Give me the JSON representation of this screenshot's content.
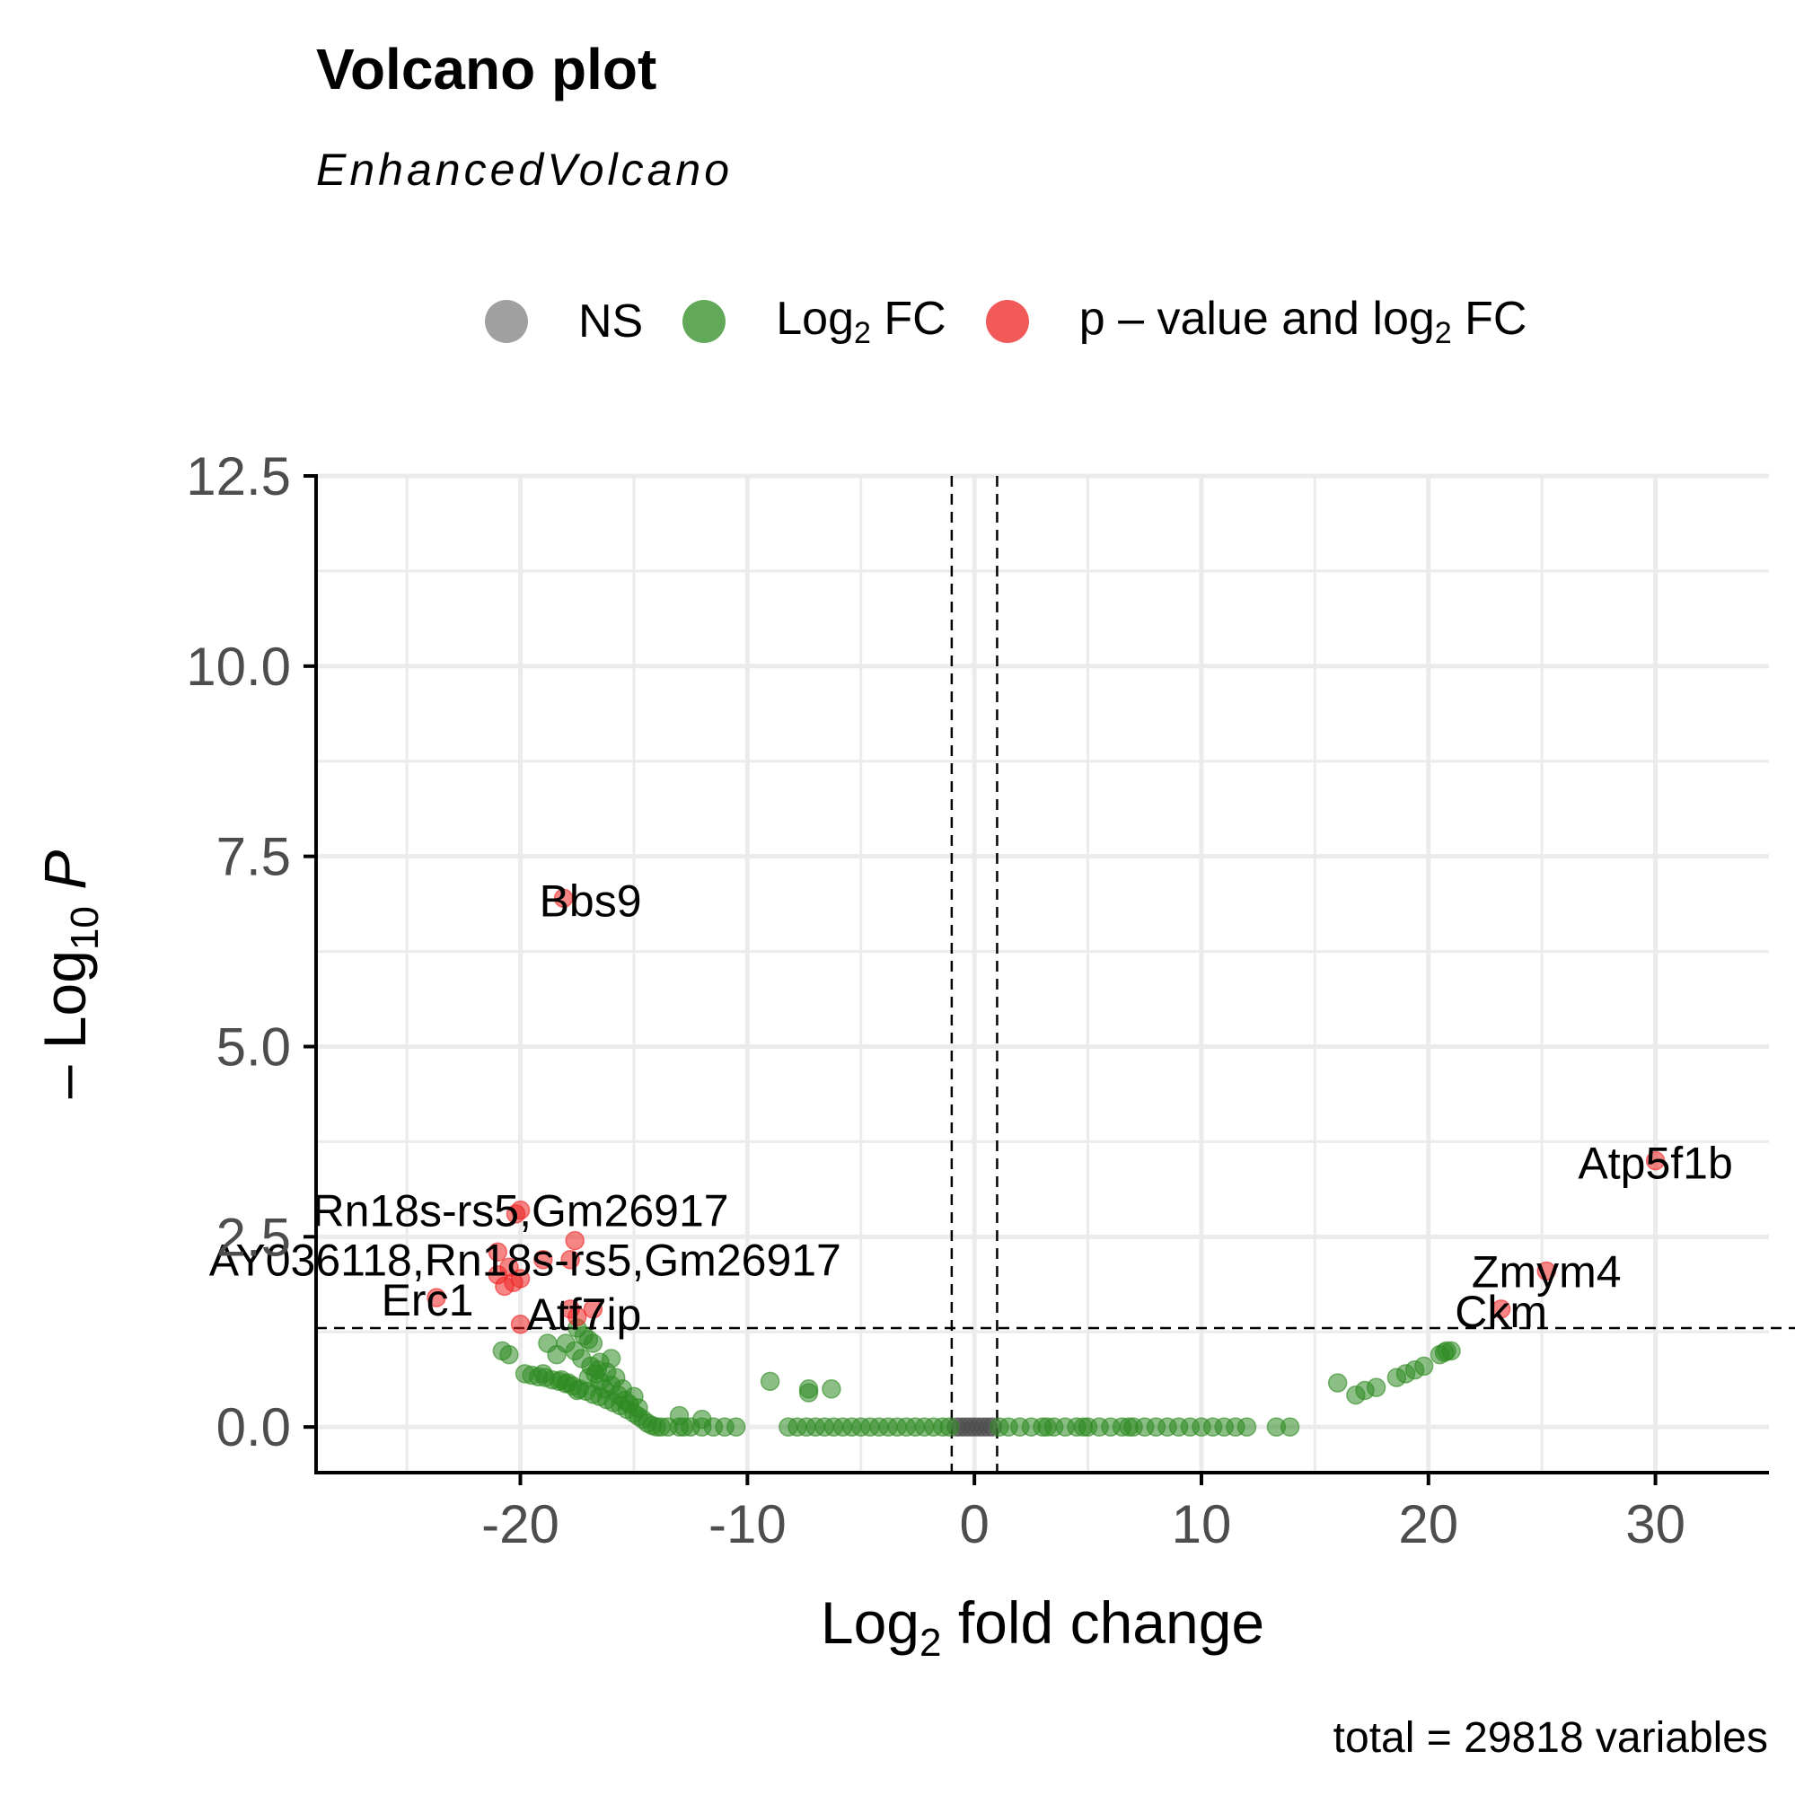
{
  "chart_data": {
    "type": "scatter",
    "title": "Volcano plot",
    "subtitle": "EnhancedVolcano",
    "caption": "total = 29818 variables",
    "xlabel": {
      "pre": "Log",
      "sub": "2",
      "post": " fold change"
    },
    "ylabel": {
      "pre": "– Log",
      "sub": "10",
      "post": " P"
    },
    "xlim": [
      -29,
      35
    ],
    "ylim": [
      -0.6,
      12.5
    ],
    "xticks": [
      -20,
      -10,
      0,
      10,
      20,
      30
    ],
    "xtick_labels": [
      "-20",
      "-10",
      "0",
      "10",
      "20",
      "30"
    ],
    "yticks": [
      0,
      2.5,
      5,
      7.5,
      10,
      12.5
    ],
    "ytick_labels": [
      "0.0",
      "2.5",
      "5.0",
      "7.5",
      "10.0",
      "12.5"
    ],
    "grid": true,
    "legend_position": "top",
    "thresholds": {
      "fc": [
        -1,
        1
      ],
      "p": 1.3
    },
    "legend": [
      {
        "key": "ns",
        "label_html": "NS",
        "color": "#808080"
      },
      {
        "key": "fc",
        "label_html": "Log<sub>2</sub> FC",
        "color": "#2e8b22"
      },
      {
        "key": "pfc",
        "label_html": "p – value and log<sub>2</sub> FC",
        "color": "#ee2222"
      }
    ],
    "series": [
      {
        "key": "ns",
        "color": "#4d4d4d",
        "points": [
          [
            -0.8,
            0
          ],
          [
            -0.6,
            0
          ],
          [
            -0.4,
            0
          ],
          [
            -0.2,
            0
          ],
          [
            0,
            0
          ],
          [
            0.2,
            0
          ],
          [
            0.4,
            0
          ],
          [
            0.6,
            0
          ],
          [
            0.8,
            0
          ]
        ]
      },
      {
        "key": "fc",
        "color": "#2e8b22",
        "points": [
          [
            -20.8,
            1.0
          ],
          [
            -20.5,
            0.95
          ],
          [
            -18.8,
            1.1
          ],
          [
            -18.0,
            1.1
          ],
          [
            -17.5,
            1.3
          ],
          [
            -17.2,
            1.2
          ],
          [
            -17.0,
            1.15
          ],
          [
            -16.8,
            1.1
          ],
          [
            -17.6,
            1.0
          ],
          [
            -18.4,
            0.95
          ],
          [
            -19.8,
            0.7
          ],
          [
            -19.5,
            0.68
          ],
          [
            -19.2,
            0.66
          ],
          [
            -18.9,
            0.65
          ],
          [
            -18.6,
            0.62
          ],
          [
            -18.3,
            0.6
          ],
          [
            -18.0,
            0.57
          ],
          [
            -17.7,
            0.54
          ],
          [
            -17.4,
            0.5
          ],
          [
            -17.1,
            0.47
          ],
          [
            -16.8,
            0.43
          ],
          [
            -16.5,
            0.4
          ],
          [
            -16.2,
            0.36
          ],
          [
            -15.9,
            0.32
          ],
          [
            -15.6,
            0.28
          ],
          [
            -15.3,
            0.23
          ],
          [
            -15.0,
            0.18
          ],
          [
            -14.8,
            0.14
          ],
          [
            -14.6,
            0.1
          ],
          [
            -14.4,
            0.05
          ],
          [
            -14.2,
            0.02
          ],
          [
            -17.0,
            0.65
          ],
          [
            -16.7,
            0.7
          ],
          [
            -16.5,
            0.6
          ],
          [
            -16.3,
            0.5
          ],
          [
            -16.0,
            0.55
          ],
          [
            -15.7,
            0.42
          ],
          [
            -15.4,
            0.35
          ],
          [
            -15.2,
            0.3
          ],
          [
            -16.9,
            0.8
          ],
          [
            -16.6,
            0.75
          ],
          [
            -16.2,
            0.72
          ],
          [
            -15.8,
            0.65
          ],
          [
            -15.5,
            0.5
          ],
          [
            -15.0,
            0.4
          ],
          [
            -14.8,
            0.25
          ],
          [
            -17.3,
            0.9
          ],
          [
            -16.5,
            0.85
          ],
          [
            -16.0,
            0.9
          ],
          [
            -19.0,
            0.7
          ],
          [
            -18.2,
            0.62
          ],
          [
            -17.9,
            0.58
          ],
          [
            -17.5,
            0.48
          ],
          [
            -14.0,
            0
          ],
          [
            -13.5,
            0
          ],
          [
            -13.0,
            0
          ],
          [
            -12.5,
            0
          ],
          [
            -12.0,
            0
          ],
          [
            -11.5,
            0
          ],
          [
            -11.0,
            0
          ],
          [
            -10.5,
            0
          ],
          [
            -13.8,
            0
          ],
          [
            -12.8,
            0
          ],
          [
            -8.2,
            0
          ],
          [
            -7.8,
            0
          ],
          [
            -7.4,
            0
          ],
          [
            -7.0,
            0
          ],
          [
            -6.6,
            0
          ],
          [
            -6.2,
            0
          ],
          [
            -5.8,
            0
          ],
          [
            -5.4,
            0
          ],
          [
            -5.0,
            0
          ],
          [
            -4.6,
            0
          ],
          [
            -4.2,
            0
          ],
          [
            -3.8,
            0
          ],
          [
            -3.4,
            0
          ],
          [
            -3.0,
            0
          ],
          [
            -2.6,
            0
          ],
          [
            -2.2,
            0
          ],
          [
            -1.8,
            0
          ],
          [
            -1.4,
            0
          ],
          [
            -1.1,
            0
          ],
          [
            -13.0,
            0.15
          ],
          [
            -12.0,
            0.1
          ],
          [
            -9.0,
            0.6
          ],
          [
            -7.3,
            0.5
          ],
          [
            -6.3,
            0.5
          ],
          [
            -7.3,
            0.45
          ],
          [
            1.1,
            0
          ],
          [
            1.5,
            0
          ],
          [
            2.0,
            0
          ],
          [
            2.5,
            0
          ],
          [
            3.0,
            0
          ],
          [
            3.5,
            0
          ],
          [
            4.0,
            0
          ],
          [
            4.5,
            0
          ],
          [
            5.0,
            0
          ],
          [
            5.5,
            0
          ],
          [
            6.0,
            0
          ],
          [
            6.5,
            0
          ],
          [
            7.0,
            0
          ],
          [
            7.5,
            0
          ],
          [
            8.0,
            0
          ],
          [
            8.5,
            0
          ],
          [
            9.0,
            0
          ],
          [
            9.5,
            0
          ],
          [
            10.0,
            0
          ],
          [
            10.5,
            0
          ],
          [
            11.0,
            0
          ],
          [
            11.5,
            0
          ],
          [
            12.0,
            0
          ],
          [
            13.3,
            0
          ],
          [
            13.9,
            0
          ],
          [
            3.2,
            0
          ],
          [
            4.8,
            0
          ],
          [
            6.8,
            0
          ],
          [
            16.0,
            0.58
          ],
          [
            16.8,
            0.42
          ],
          [
            17.2,
            0.48
          ],
          [
            17.7,
            0.52
          ],
          [
            18.6,
            0.65
          ],
          [
            19.0,
            0.7
          ],
          [
            19.4,
            0.75
          ],
          [
            19.8,
            0.8
          ],
          [
            20.5,
            0.95
          ],
          [
            20.8,
            1.0
          ],
          [
            21.0,
            1.0
          ],
          [
            20.7,
            0.98
          ]
        ]
      },
      {
        "key": "pfc",
        "color": "#ee2222",
        "points": [
          [
            -18.1,
            6.95
          ],
          [
            -20.0,
            2.85
          ],
          [
            -20.2,
            2.8
          ],
          [
            -17.6,
            2.45
          ],
          [
            -17.8,
            2.2
          ],
          [
            -19.0,
            2.2
          ],
          [
            -21.0,
            2.3
          ],
          [
            -20.5,
            2.1
          ],
          [
            -21.0,
            2.0
          ],
          [
            -20.0,
            1.95
          ],
          [
            -20.3,
            1.9
          ],
          [
            -20.7,
            1.85
          ],
          [
            -23.7,
            1.7
          ],
          [
            -17.8,
            1.55
          ],
          [
            -16.8,
            1.55
          ],
          [
            -17.5,
            1.45
          ],
          [
            -20.0,
            1.35
          ],
          [
            30.0,
            3.5
          ],
          [
            25.2,
            2.05
          ],
          [
            23.2,
            1.55
          ]
        ]
      }
    ],
    "labels": [
      {
        "text": "Bbs9",
        "x": -18.1,
        "y": 6.95,
        "dx": 30,
        "dy": 20
      },
      {
        "text": "Rn18s-rs5,Gm26917",
        "x": -20.0,
        "y": 2.85,
        "dx": 0,
        "dy": 18
      },
      {
        "text": "AY036118,Rn18s-rs5,Gm26917",
        "x": -19.0,
        "y": 2.2,
        "dx": -20,
        "dy": 18
      },
      {
        "text": "Erc1",
        "x": -23.7,
        "y": 1.7,
        "dx": -10,
        "dy": 20
      },
      {
        "text": "Atf7ip",
        "x": -16.8,
        "y": 1.55,
        "dx": -10,
        "dy": 23
      },
      {
        "text": "Atp5f1b",
        "x": 30.0,
        "y": 3.5,
        "dx": 0,
        "dy": 20
      },
      {
        "text": "Zmym4",
        "x": 25.2,
        "y": 2.05,
        "dx": 0,
        "dy": 18
      },
      {
        "text": "Ckm",
        "x": 23.2,
        "y": 1.55,
        "dx": 0,
        "dy": 20
      }
    ]
  }
}
